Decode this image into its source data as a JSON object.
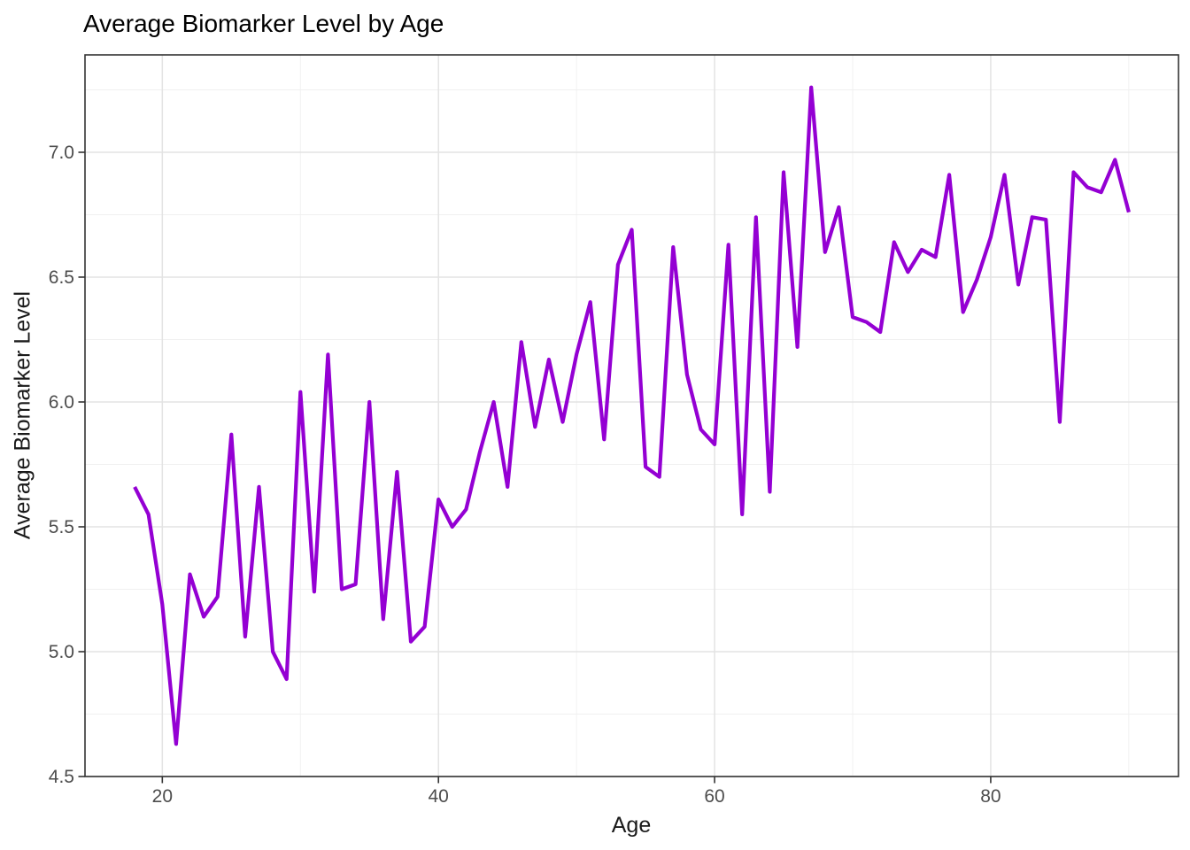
{
  "chart_data": {
    "type": "line",
    "title": "Average Biomarker Level by Age",
    "xlabel": "Age",
    "ylabel": "Average Biomarker Level",
    "series_name": "Average Biomarker Level",
    "x": [
      18,
      19,
      20,
      21,
      22,
      23,
      24,
      25,
      26,
      27,
      28,
      29,
      30,
      31,
      32,
      33,
      34,
      35,
      36,
      37,
      38,
      39,
      40,
      41,
      42,
      43,
      44,
      45,
      46,
      47,
      48,
      49,
      50,
      51,
      52,
      53,
      54,
      55,
      56,
      57,
      58,
      59,
      60,
      61,
      62,
      63,
      64,
      65,
      66,
      67,
      68,
      69,
      70,
      71,
      72,
      73,
      74,
      75,
      76,
      77,
      78,
      79,
      80,
      81,
      82,
      83,
      84,
      85,
      86,
      87,
      88,
      89,
      90
    ],
    "values": [
      5.66,
      5.55,
      5.19,
      4.63,
      5.31,
      5.14,
      5.22,
      5.87,
      5.06,
      5.66,
      5.0,
      4.89,
      6.04,
      5.24,
      6.19,
      5.25,
      5.27,
      6.0,
      5.13,
      5.72,
      5.04,
      5.1,
      5.61,
      5.5,
      5.57,
      5.8,
      6.0,
      5.66,
      6.24,
      5.9,
      6.17,
      5.92,
      6.19,
      6.4,
      5.85,
      6.55,
      6.69,
      5.74,
      5.7,
      6.62,
      6.11,
      5.89,
      5.83,
      6.63,
      5.55,
      6.74,
      5.64,
      6.92,
      6.22,
      7.26,
      6.6,
      6.78,
      6.34,
      6.32,
      6.28,
      6.64,
      6.52,
      6.61,
      6.58,
      6.91,
      6.36,
      6.49,
      6.66,
      6.91,
      6.47,
      6.74,
      6.73,
      5.92,
      6.92,
      6.86,
      6.84,
      6.97,
      6.76
    ],
    "xlim": [
      14.4,
      93.6
    ],
    "ylim": [
      4.5,
      7.39
    ],
    "x_ticks": {
      "major": [
        20,
        40,
        60,
        80
      ],
      "minor": [
        30,
        50,
        70,
        90
      ],
      "labels": [
        "20",
        "40",
        "60",
        "80"
      ]
    },
    "y_ticks": {
      "major": [
        4.5,
        5.0,
        5.5,
        6.0,
        6.5,
        7.0
      ],
      "minor": [
        4.75,
        5.25,
        5.75,
        6.25,
        6.75,
        7.25
      ],
      "labels": [
        "4.5",
        "5.0",
        "5.5",
        "6.0",
        "6.5",
        "7.0"
      ]
    },
    "grid": "major+minor",
    "legend": "none",
    "colors": {
      "line": "#9400D3",
      "grid_major": "#E3E3E3",
      "grid_minor": "#F0F0F0",
      "panel_border": "#333333",
      "panel_background": "#FFFFFF",
      "tick": "#333333",
      "tick_label": "#4D4D4D",
      "title": "#000000",
      "axis_title": "#1A1A1A",
      "background": "#FFFFFF"
    }
  }
}
